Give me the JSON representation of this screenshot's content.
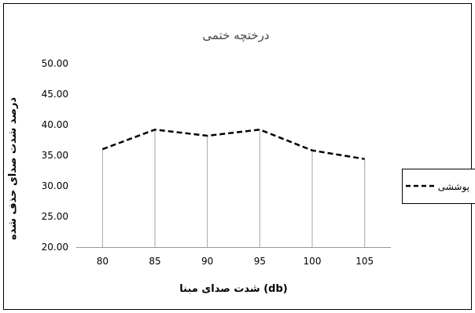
{
  "chart_data": {
    "type": "line",
    "title": "درختچه ختمی",
    "xlabel": "شدت صدای مبنا (db)",
    "ylabel": "درصد شدت صدای حذف شده",
    "categories": [
      "80",
      "85",
      "90",
      "95",
      "100",
      "105"
    ],
    "yticks": [
      "20.00",
      "25.00",
      "30.00",
      "35.00",
      "40.00",
      "45.00",
      "50.00"
    ],
    "ylim": [
      20,
      50
    ],
    "grid": false,
    "drop_lines": true,
    "legend_position": "right",
    "series": [
      {
        "name": "پوششی",
        "values": [
          36.0,
          39.2,
          38.2,
          39.2,
          35.8,
          34.4
        ],
        "color": "#000000",
        "line_style": "dashed"
      }
    ]
  }
}
